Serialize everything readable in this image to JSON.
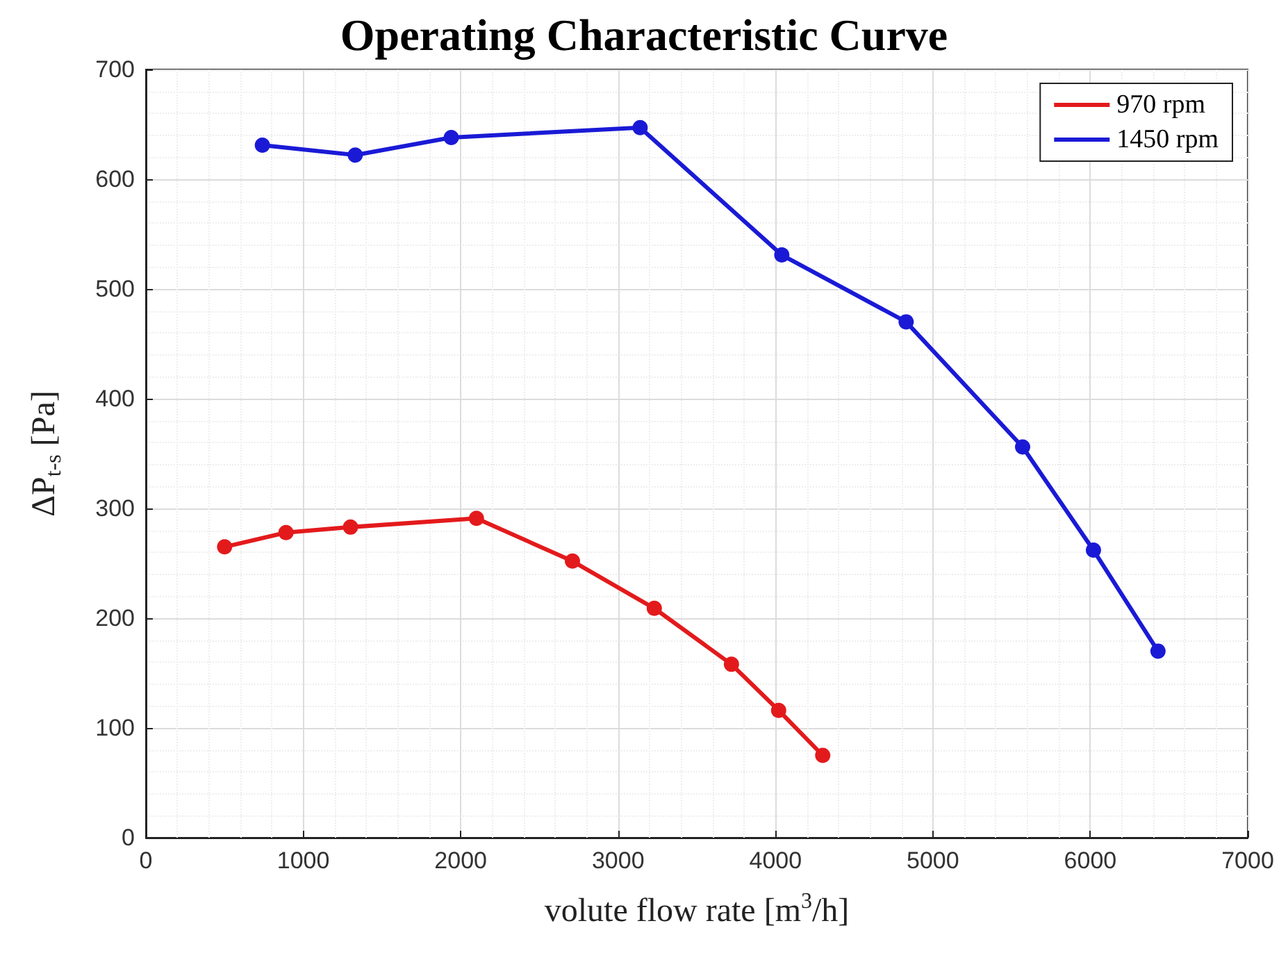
{
  "chart_data": {
    "type": "line",
    "title": "Operating Characteristic Curve",
    "xlabel": "volute flow rate [m$^{3}$/h]",
    "ylabel": "ΔP$_{t-s}$ [Pa]",
    "series": [
      {
        "name": "970 rpm",
        "color": "#e31a1c",
        "x": [
          500,
          890,
          1300,
          2100,
          2710,
          3230,
          3720,
          4020,
          4300
        ],
        "values": [
          265,
          278,
          283,
          291,
          252,
          209,
          158,
          116,
          75
        ]
      },
      {
        "name": "1450 rpm",
        "color": "#1a1ad6",
        "x": [
          740,
          1330,
          1940,
          3140,
          4040,
          4830,
          5570,
          6020,
          6430
        ],
        "values": [
          631,
          622,
          638,
          647,
          531,
          470,
          356,
          262,
          170
        ]
      }
    ],
    "xlim": [
      0,
      7000
    ],
    "xticks": [
      0,
      1000,
      2000,
      3000,
      4000,
      5000,
      6000,
      7000
    ],
    "ylim": [
      0,
      700
    ],
    "yticks": [
      0,
      100,
      200,
      300,
      400,
      500,
      600,
      700
    ],
    "grid": true,
    "legend": "top right",
    "marker": "circle",
    "line_style": "solid"
  }
}
